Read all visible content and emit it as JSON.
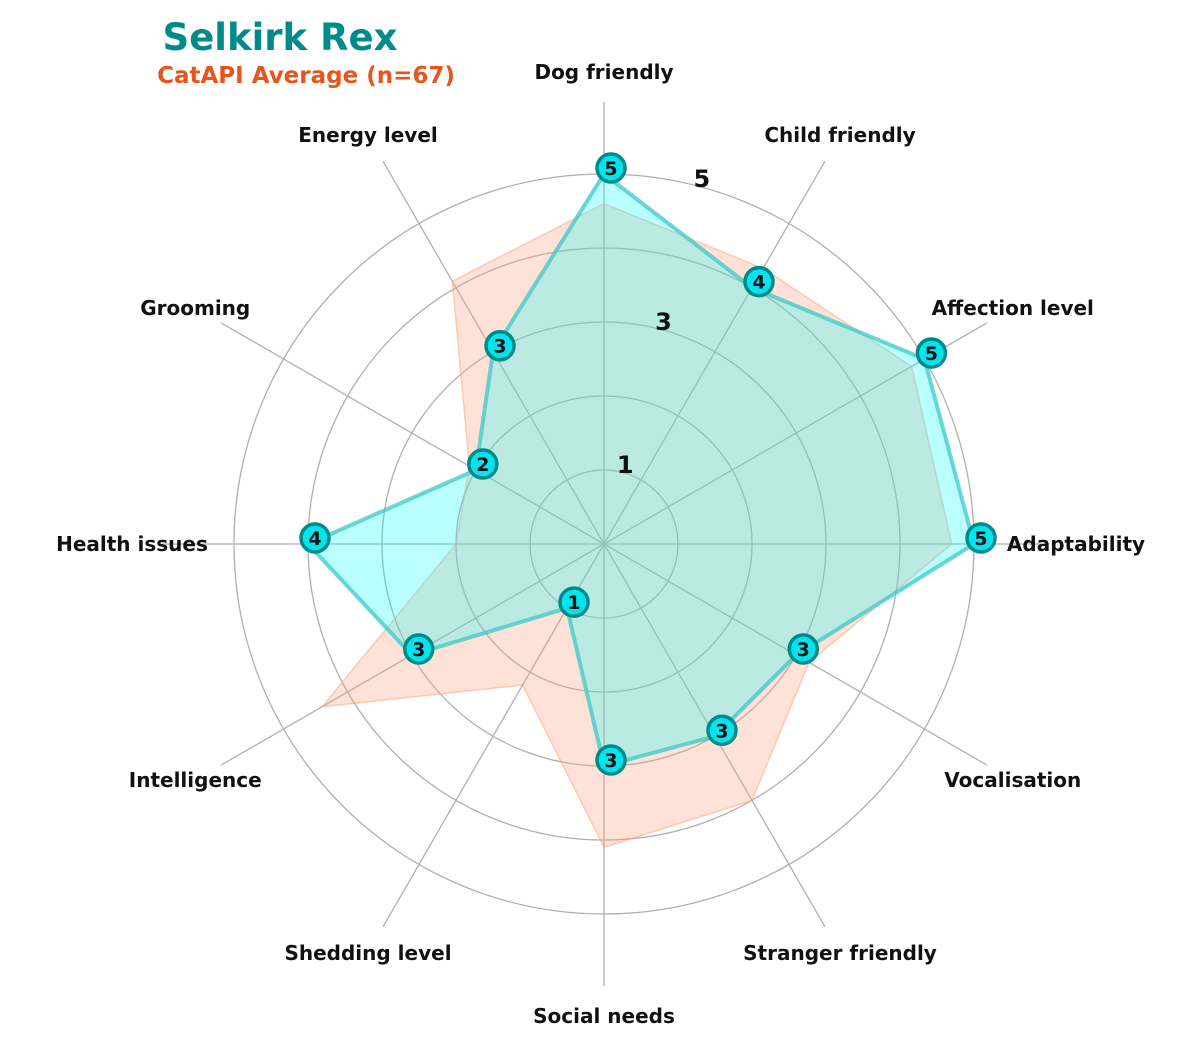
{
  "chart_data": {
    "type": "radar",
    "title": "Selkirk Rex",
    "subtitle": "CatAPI Average (n=67)",
    "axes": [
      "Adaptability",
      "Affection level",
      "Child friendly",
      "Dog friendly",
      "Energy level",
      "Grooming",
      "Health issues",
      "Intelligence",
      "Shedding level",
      "Social needs",
      "Stranger friendly",
      "Vocalisation"
    ],
    "r_range": [
      0,
      5
    ],
    "r_ticks": [
      1,
      3,
      5
    ],
    "grid": true,
    "series": [
      {
        "name": "Selkirk Rex",
        "values": [
          5,
          5,
          4,
          5,
          3,
          2,
          4,
          3,
          1,
          3,
          3,
          3
        ],
        "labels": [
          "5",
          "5",
          "4",
          "5",
          "3",
          "2",
          "4",
          "3",
          "1",
          "3",
          "3",
          "3"
        ]
      },
      {
        "name": "CatAPI Average (n=67)",
        "values": [
          4.7,
          4.8,
          4.3,
          4.6,
          4.1,
          2.1,
          2.0,
          4.4,
          2.2,
          4.1,
          4.0,
          3.2
        ]
      }
    ],
    "colors": {
      "breed_fill": "#00ffff",
      "breed_line": "#008b8b",
      "breed_marker": "#00e5ee",
      "avg_fill": "#ffa07a",
      "title": "#008b8b",
      "subtitle": "#e8541c",
      "grid": "#b0b0b0"
    }
  }
}
